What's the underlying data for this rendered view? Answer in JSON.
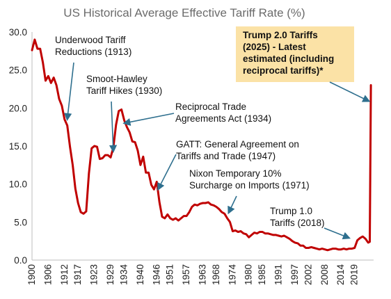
{
  "chart_data": {
    "type": "line",
    "title": "US Historical Average Effective Tariff Rate (%)",
    "xlabel": "",
    "ylabel": "",
    "xlim": [
      1900,
      2026
    ],
    "ylim": [
      0,
      30
    ],
    "grid": false,
    "y_ticks": [
      "30.0",
      "25.0",
      "20.0",
      "15.0",
      "10.0",
      "5.0",
      "0.0"
    ],
    "x_ticks": [
      "1900",
      "1906",
      "1912",
      "1917",
      "1923",
      "1929",
      "1934",
      "1940",
      "1946",
      "1951",
      "1957",
      "1963",
      "1968",
      "1974",
      "1980",
      "1985",
      "1991",
      "1997",
      "2002",
      "2008",
      "2014",
      "2019"
    ],
    "line_color": "#c00000",
    "arrow_color": "#2e6f8e",
    "callout_bg": "#fbe2a6",
    "series": [
      {
        "x": [
          1900,
          1901,
          1902,
          1903,
          1904,
          1905,
          1906,
          1907,
          1908,
          1909,
          1910,
          1911,
          1912,
          1913,
          1914,
          1915,
          1916,
          1917,
          1918,
          1919,
          1920,
          1921,
          1922,
          1923,
          1924,
          1925,
          1926,
          1927,
          1928,
          1929,
          1930,
          1931,
          1932,
          1933,
          1934,
          1935,
          1936,
          1937,
          1938,
          1939,
          1940,
          1941,
          1942,
          1943,
          1944,
          1945,
          1946,
          1947,
          1948,
          1949,
          1950,
          1951,
          1952,
          1953,
          1954,
          1955,
          1956,
          1957,
          1958,
          1959,
          1960,
          1961,
          1962,
          1963,
          1964,
          1965,
          1966,
          1967,
          1968,
          1969,
          1970,
          1971,
          1972,
          1973,
          1974,
          1975,
          1976,
          1977,
          1978,
          1979,
          1980,
          1981,
          1982,
          1983,
          1984,
          1985,
          1986,
          1987,
          1988,
          1989,
          1990,
          1991,
          1992,
          1993,
          1994,
          1995,
          1996,
          1997,
          1998,
          1999,
          2000,
          2001,
          2002,
          2003,
          2004,
          2005,
          2006,
          2007,
          2008,
          2009,
          2010,
          2011,
          2012,
          2013,
          2014,
          2015,
          2016,
          2017,
          2018,
          2019,
          2020,
          2021,
          2022,
          2023,
          2024,
          2024.6,
          2025
        ],
        "values": [
          27.6,
          29.0,
          27.8,
          27.8,
          26.0,
          23.6,
          24.2,
          23.3,
          24.0,
          23.0,
          21.2,
          20.3,
          18.5,
          17.7,
          14.9,
          12.5,
          9.4,
          7.5,
          6.3,
          6.1,
          6.4,
          11.4,
          14.7,
          15.0,
          14.9,
          13.3,
          13.4,
          13.8,
          13.8,
          13.5,
          14.8,
          17.8,
          19.6,
          19.8,
          18.4,
          17.5,
          16.8,
          15.6,
          15.5,
          14.4,
          12.5,
          13.6,
          11.5,
          11.5,
          9.9,
          9.3,
          10.3,
          7.6,
          5.7,
          5.5,
          6.0,
          5.5,
          5.3,
          5.5,
          5.2,
          5.5,
          5.8,
          5.8,
          6.3,
          7.0,
          7.3,
          7.2,
          7.4,
          7.5,
          7.5,
          7.6,
          7.3,
          7.2,
          7.0,
          6.7,
          6.3,
          6.1,
          5.5,
          5.0,
          3.8,
          3.9,
          3.7,
          3.8,
          3.5,
          3.4,
          3.0,
          3.3,
          3.6,
          3.5,
          3.7,
          3.7,
          3.5,
          3.5,
          3.4,
          3.3,
          3.3,
          3.2,
          3.1,
          3.2,
          3.0,
          2.8,
          2.5,
          2.3,
          2.2,
          1.9,
          1.9,
          1.6,
          1.6,
          1.7,
          1.6,
          1.5,
          1.4,
          1.5,
          1.4,
          1.3,
          1.4,
          1.5,
          1.5,
          1.4,
          1.4,
          1.5,
          1.4,
          1.5,
          1.5,
          1.6,
          2.6,
          2.9,
          3.1,
          2.8,
          2.3,
          2.4,
          23.0
        ]
      }
    ],
    "annotations": [
      {
        "lines": [
          "Underwood Tariff",
          "Reductions (1913)"
        ],
        "target": [
          1913,
          18.5
        ]
      },
      {
        "lines": [
          "Smoot-Hawley",
          "Tariff Hikes (1930)"
        ],
        "target": [
          1930,
          14.3
        ]
      },
      {
        "lines": [
          "Reciprocal Trade",
          "Agreements Act (1934)"
        ],
        "target": [
          1934,
          18.0
        ]
      },
      {
        "lines": [
          "GATT: General Agreement on",
          "Tariffs and Trade (1947)"
        ],
        "target": [
          1946.5,
          9.3
        ]
      },
      {
        "lines": [
          "Nixon Temporary 10%",
          "Surcharge on Imports (1971)"
        ],
        "target": [
          1972.5,
          6.2
        ]
      },
      {
        "lines": [
          "Trump 1.0",
          "Tariffs (2018)"
        ],
        "target": [
          2017,
          2.9
        ]
      },
      {
        "lines": [
          "Trump 2.0 Tariffs",
          "(2025) - Latest",
          "estimated (including",
          "reciprocal tariffs)*"
        ],
        "target": [
          2024.3,
          20.9
        ],
        "highlight": true
      }
    ]
  }
}
